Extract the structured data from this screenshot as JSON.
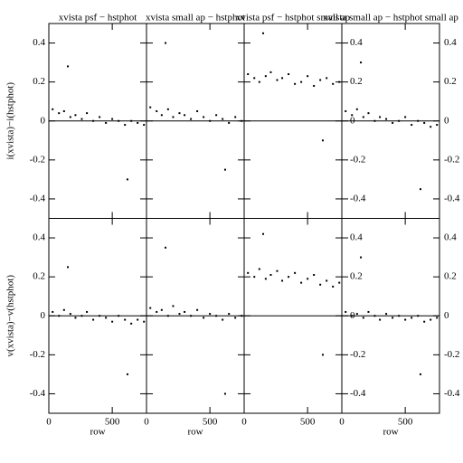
{
  "chart_data": [
    {
      "type": "scatter",
      "title": "xvista psf − hstphot",
      "ylabel": "i(xvista)−i(hstphot)",
      "xlim": [
        0,
        770
      ],
      "ylim": [
        -0.5,
        0.5
      ],
      "xticks": [
        0,
        500
      ],
      "yticks": [
        -0.4,
        -0.2,
        0,
        0.2,
        0.4
      ],
      "hline": 0,
      "color": "#000000",
      "x": [
        30,
        80,
        120,
        170,
        210,
        260,
        300,
        350,
        400,
        450,
        500,
        550,
        600,
        650,
        700,
        750,
        150,
        620
      ],
      "y": [
        0.06,
        0.04,
        0.05,
        0.02,
        0.03,
        0.01,
        0.04,
        0.0,
        0.02,
        -0.01,
        0.01,
        0.0,
        -0.02,
        0.0,
        -0.01,
        -0.02,
        0.28,
        -0.3
      ]
    },
    {
      "type": "scatter",
      "title": "xvista small ap − hstphot",
      "xlim": [
        0,
        770
      ],
      "ylim": [
        -0.5,
        0.5
      ],
      "xticks": [
        0,
        500
      ],
      "yticks": [
        -0.4,
        -0.2,
        0,
        0.2,
        0.4
      ],
      "hline": 0,
      "color": "#000000",
      "x": [
        30,
        80,
        120,
        170,
        210,
        260,
        300,
        350,
        400,
        450,
        500,
        550,
        600,
        650,
        700,
        750,
        150,
        620
      ],
      "y": [
        0.07,
        0.05,
        0.03,
        0.06,
        0.02,
        0.04,
        0.03,
        0.01,
        0.05,
        0.02,
        0.0,
        0.03,
        0.01,
        -0.01,
        0.02,
        0.0,
        0.4,
        -0.25
      ]
    },
    {
      "type": "scatter",
      "title": "xvista psf − hstphot small ap",
      "xlim": [
        0,
        770
      ],
      "ylim": [
        -0.5,
        0.5
      ],
      "xticks": [
        0,
        500
      ],
      "yticks": [
        -0.4,
        -0.2,
        0,
        0.2,
        0.4
      ],
      "hline": 0,
      "color": "#000000",
      "x": [
        30,
        80,
        120,
        170,
        210,
        260,
        300,
        350,
        400,
        450,
        500,
        550,
        600,
        650,
        700,
        750,
        150,
        620
      ],
      "y": [
        0.24,
        0.22,
        0.2,
        0.23,
        0.25,
        0.21,
        0.22,
        0.24,
        0.19,
        0.2,
        0.23,
        0.18,
        0.21,
        0.22,
        0.19,
        0.2,
        0.45,
        -0.1
      ]
    },
    {
      "type": "scatter",
      "title": "xvista small ap − hstphot small ap",
      "xlim": [
        0,
        770
      ],
      "ylim": [
        -0.5,
        0.5
      ],
      "xticks": [
        0,
        500
      ],
      "yticks": [
        -0.4,
        -0.2,
        0,
        0.2,
        0.4
      ],
      "hline": 0,
      "color": "#000000",
      "x": [
        30,
        80,
        120,
        170,
        210,
        260,
        300,
        350,
        400,
        450,
        500,
        550,
        600,
        650,
        700,
        750,
        150,
        620
      ],
      "y": [
        0.05,
        0.03,
        0.06,
        0.02,
        0.04,
        0.0,
        0.02,
        0.01,
        -0.01,
        0.0,
        0.02,
        -0.02,
        0.0,
        -0.01,
        -0.03,
        -0.02,
        0.3,
        -0.35
      ]
    },
    {
      "type": "scatter",
      "ylabel": "v(xvista)−v(hstphot)",
      "xlabel": "row",
      "xlim": [
        0,
        770
      ],
      "ylim": [
        -0.5,
        0.5
      ],
      "xticks": [
        0,
        500
      ],
      "yticks": [
        -0.4,
        -0.2,
        0,
        0.2,
        0.4
      ],
      "hline": 0,
      "color": "#000000",
      "x": [
        30,
        80,
        120,
        170,
        210,
        260,
        300,
        350,
        400,
        450,
        500,
        550,
        600,
        650,
        700,
        750,
        150,
        620
      ],
      "y": [
        0.02,
        0.0,
        0.03,
        0.01,
        -0.01,
        0.0,
        0.02,
        -0.02,
        0.0,
        -0.01,
        -0.03,
        0.0,
        -0.02,
        -0.04,
        -0.02,
        -0.03,
        0.25,
        -0.3
      ]
    },
    {
      "type": "scatter",
      "xlabel": "row",
      "xlim": [
        0,
        770
      ],
      "ylim": [
        -0.5,
        0.5
      ],
      "xticks": [
        0,
        500
      ],
      "yticks": [
        -0.4,
        -0.2,
        0,
        0.2,
        0.4
      ],
      "hline": 0,
      "color": "#000000",
      "x": [
        30,
        80,
        120,
        170,
        210,
        260,
        300,
        350,
        400,
        450,
        500,
        550,
        600,
        650,
        700,
        750,
        150,
        620
      ],
      "y": [
        0.04,
        0.02,
        0.03,
        0.0,
        0.05,
        0.01,
        0.02,
        0.0,
        0.03,
        -0.01,
        0.01,
        0.0,
        -0.02,
        0.01,
        -0.01,
        0.0,
        0.35,
        -0.4
      ]
    },
    {
      "type": "scatter",
      "xlim": [
        0,
        770
      ],
      "ylim": [
        -0.5,
        0.5
      ],
      "xticks": [
        0,
        500
      ],
      "yticks": [
        -0.4,
        -0.2,
        0,
        0.2,
        0.4
      ],
      "hline": 0,
      "color": "#000000",
      "x": [
        30,
        80,
        120,
        170,
        210,
        260,
        300,
        350,
        400,
        450,
        500,
        550,
        600,
        650,
        700,
        750,
        150,
        620
      ],
      "y": [
        0.22,
        0.2,
        0.24,
        0.19,
        0.21,
        0.23,
        0.18,
        0.2,
        0.22,
        0.17,
        0.19,
        0.21,
        0.16,
        0.18,
        0.15,
        0.17,
        0.42,
        -0.2
      ]
    },
    {
      "type": "scatter",
      "xlabel": "row",
      "xlim": [
        0,
        770
      ],
      "ylim": [
        -0.5,
        0.5
      ],
      "xticks": [
        0,
        500
      ],
      "yticks": [
        -0.4,
        -0.2,
        0,
        0.2,
        0.4
      ],
      "hline": 0,
      "color": "#000000",
      "x": [
        30,
        80,
        120,
        170,
        210,
        260,
        300,
        350,
        400,
        450,
        500,
        550,
        600,
        650,
        700,
        750,
        150,
        620
      ],
      "y": [
        0.02,
        0.0,
        0.01,
        -0.01,
        0.02,
        0.0,
        -0.02,
        0.01,
        -0.01,
        0.0,
        -0.02,
        -0.01,
        0.0,
        -0.03,
        -0.02,
        -0.01,
        0.3,
        -0.3
      ]
    }
  ]
}
